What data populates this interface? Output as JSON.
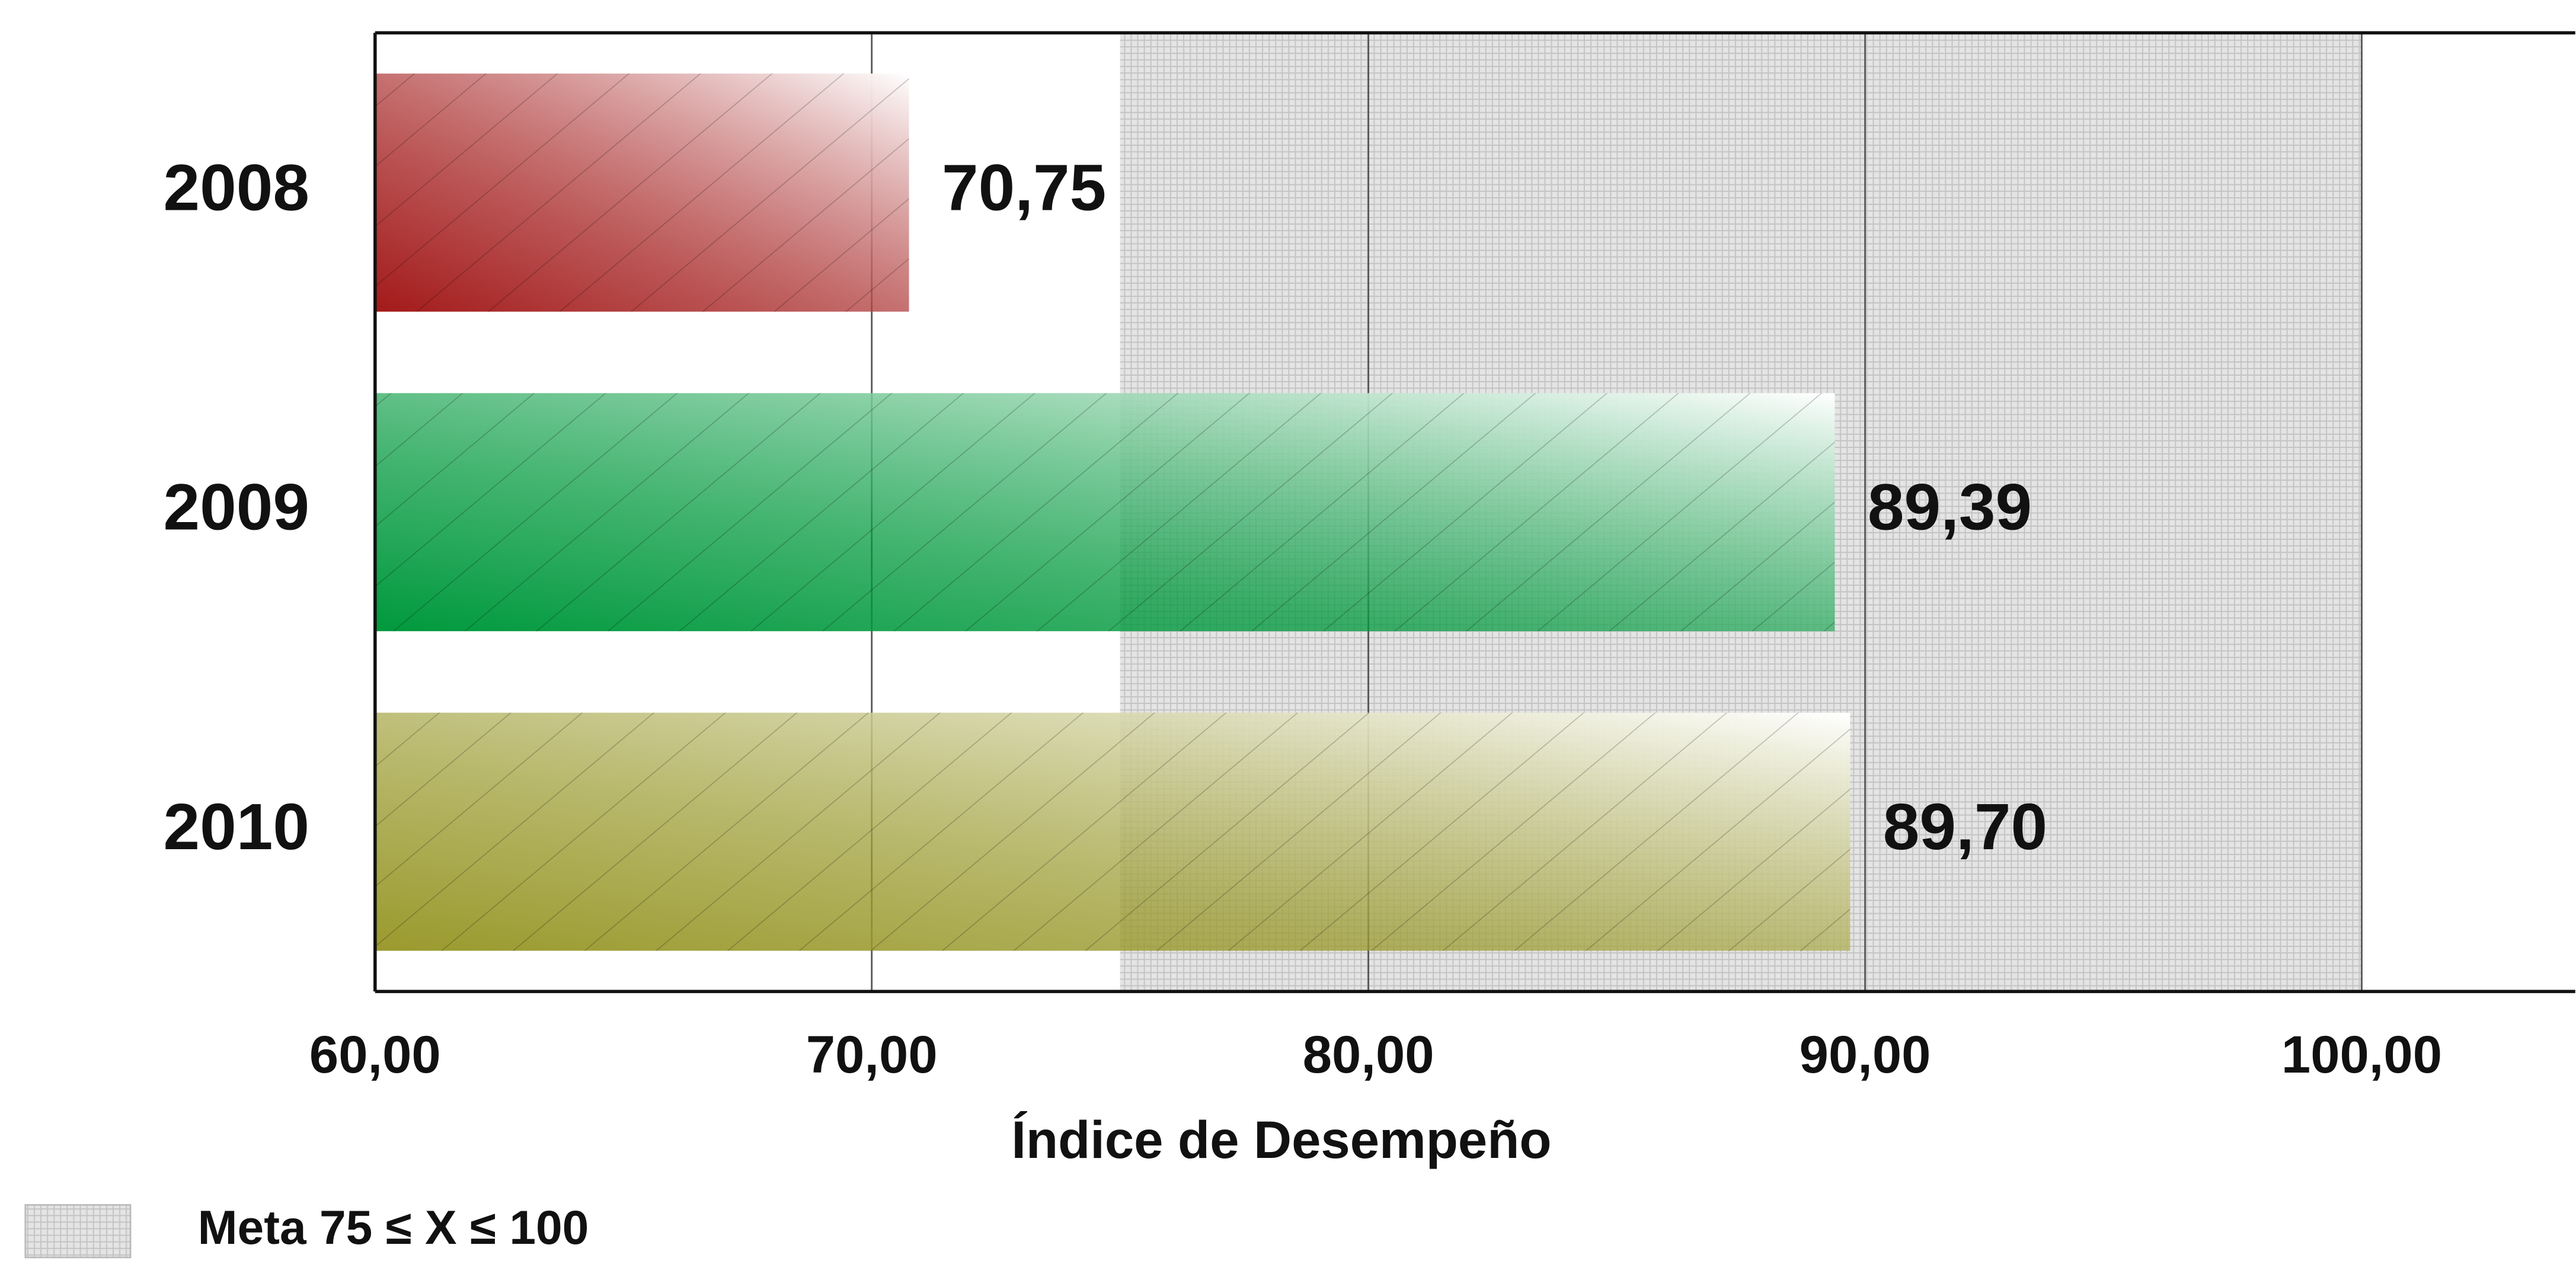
{
  "chart_data": {
    "type": "barh",
    "xlabel": "Índice de Desempeño",
    "categories": [
      "2008",
      "2009",
      "2010"
    ],
    "values": [
      70.75,
      89.39,
      89.7
    ],
    "value_labels": [
      "70,75",
      "89,39",
      "89,70"
    ],
    "colors": [
      "#a31a1a",
      "#00993d",
      "#9a9a2e"
    ],
    "xlim": [
      60,
      104.3
    ],
    "xticks": [
      {
        "value": 60,
        "label": "60,00"
      },
      {
        "value": 70,
        "label": "70,00"
      },
      {
        "value": 80,
        "label": "80,00"
      },
      {
        "value": 90,
        "label": "90,00"
      },
      {
        "value": 100,
        "label": "100,00"
      }
    ],
    "grid": true,
    "goal_band": {
      "range": [
        75,
        100
      ],
      "label": "Meta 75 ≤ X ≤ 100"
    }
  }
}
